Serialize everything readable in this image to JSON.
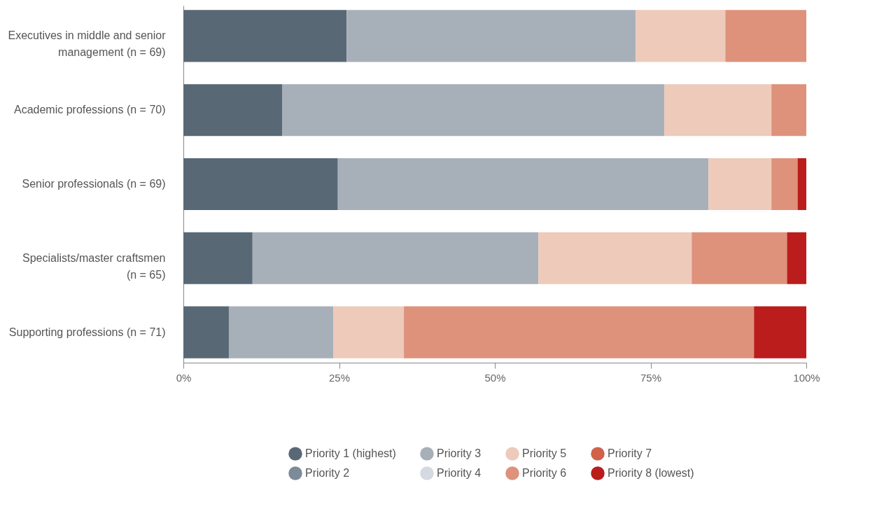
{
  "chart_data": {
    "type": "bar",
    "orientation": "horizontal",
    "stacked": true,
    "categories": [
      "Executives in middle and senior management (n = 69)",
      "Academic professions (n = 70)",
      "Senior professionals (n = 69)",
      "Specialists/master craftsmen (n = 65)",
      "Supporting professions (n = 71)"
    ],
    "series": [
      {
        "name": "Priority 1 (highest)",
        "color": "#596875",
        "values": [
          26.2,
          15.9,
          24.8,
          11.1,
          7.3
        ]
      },
      {
        "name": "Priority 2",
        "color": "#7d8a97",
        "values": [
          0,
          0,
          0,
          0,
          0
        ]
      },
      {
        "name": "Priority 3",
        "color": "#a7b0b9",
        "values": [
          46.4,
          61.3,
          59.5,
          45.9,
          16.8
        ]
      },
      {
        "name": "Priority 4",
        "color": "#d5d9e0",
        "values": [
          0,
          0,
          0,
          0,
          0
        ]
      },
      {
        "name": "Priority 5",
        "color": "#eecabb",
        "values": [
          14.4,
          17.2,
          10.1,
          24.6,
          11.3
        ]
      },
      {
        "name": "Priority 6",
        "color": "#de927b",
        "values": [
          13.0,
          5.6,
          4.2,
          15.3,
          56.2
        ]
      },
      {
        "name": "Priority 7",
        "color": "#d0624a",
        "values": [
          0,
          0,
          0,
          0,
          0
        ]
      },
      {
        "name": "Priority 8 (lowest)",
        "color": "#bb1c1c",
        "values": [
          0,
          0,
          1.4,
          3.1,
          8.4
        ]
      }
    ],
    "xlim": [
      0,
      100
    ],
    "xticks": [
      {
        "value": 0,
        "label": "0%"
      },
      {
        "value": 25,
        "label": "25%"
      },
      {
        "value": 50,
        "label": "50%"
      },
      {
        "value": 75,
        "label": "75%"
      },
      {
        "value": 100,
        "label": "100%"
      }
    ],
    "grid": false,
    "legend": "bottom"
  }
}
